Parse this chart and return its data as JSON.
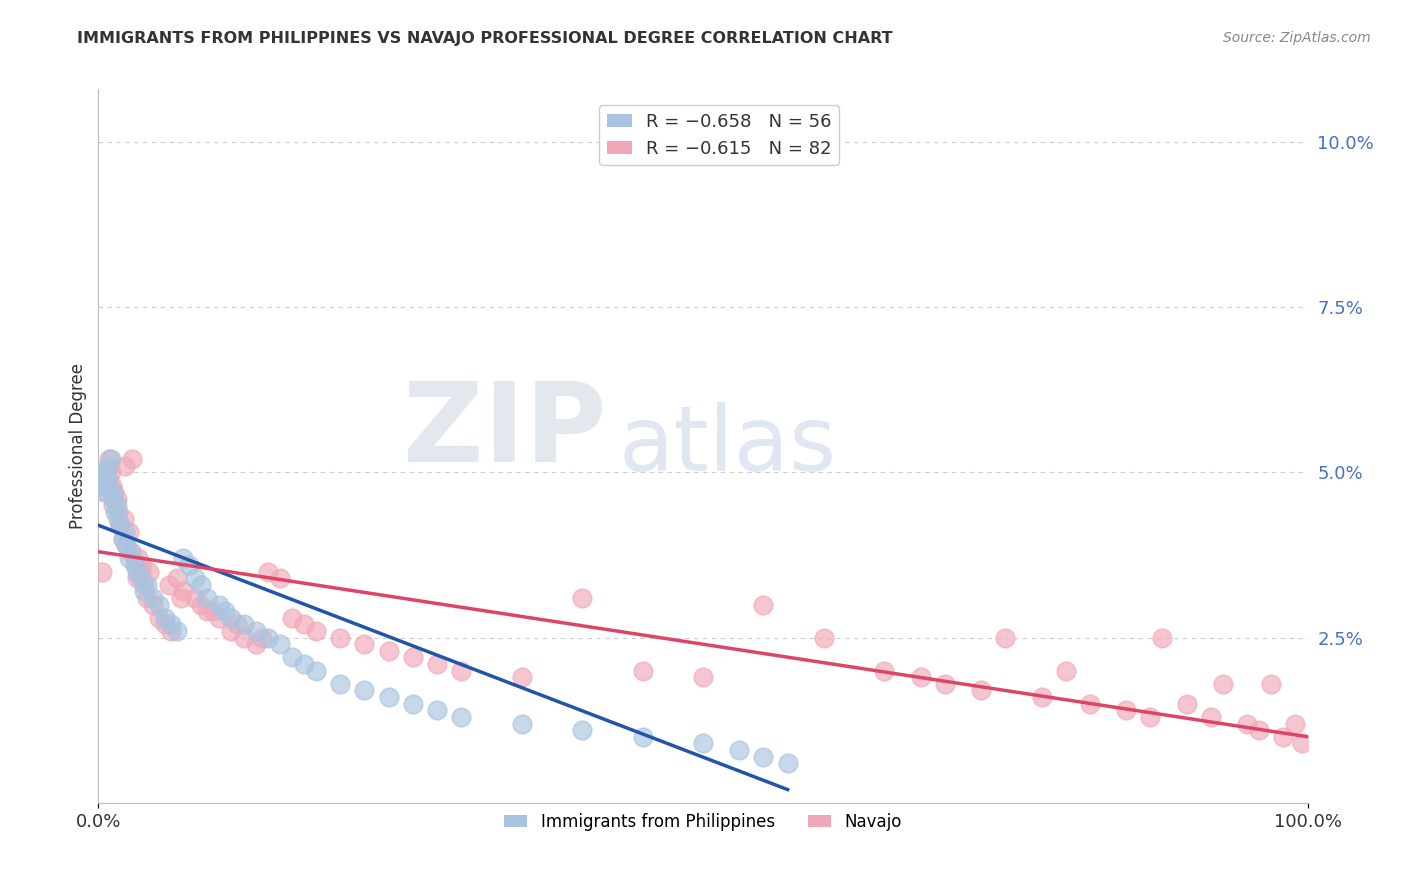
{
  "title": "IMMIGRANTS FROM PHILIPPINES VS NAVAJO PROFESSIONAL DEGREE CORRELATION CHART",
  "source": "Source: ZipAtlas.com",
  "ylabel": "Professional Degree",
  "watermark_zip": "ZIP",
  "watermark_atlas": "atlas",
  "legend": {
    "blue_r": "-0.658",
    "blue_n": "56",
    "pink_r": "-0.615",
    "pink_n": "82"
  },
  "blue_color": "#a8c4e0",
  "pink_color": "#f0a8b8",
  "blue_line_color": "#2255aa",
  "pink_line_color": "#dd4466",
  "background_color": "#ffffff",
  "xlim": [
    0,
    100
  ],
  "ylim": [
    0,
    0.108
  ],
  "yticks": [
    0.0,
    0.025,
    0.05,
    0.075,
    0.1
  ],
  "ytick_labels": [
    "",
    "2.5%",
    "5.0%",
    "7.5%",
    "10.0%"
  ],
  "grid_color": "#cccccc",
  "blue_x": [
    0.4,
    0.5,
    0.6,
    0.7,
    0.8,
    0.9,
    1.0,
    1.1,
    1.2,
    1.4,
    1.5,
    1.6,
    1.8,
    2.0,
    2.2,
    2.3,
    2.5,
    2.7,
    3.0,
    3.2,
    3.5,
    3.8,
    4.0,
    4.5,
    5.0,
    5.5,
    6.0,
    6.5,
    7.0,
    7.5,
    8.0,
    8.5,
    9.0,
    10.0,
    10.5,
    11.0,
    12.0,
    13.0,
    14.0,
    15.0,
    16.0,
    17.0,
    18.0,
    20.0,
    22.0,
    24.0,
    26.0,
    28.0,
    30.0,
    35.0,
    40.0,
    45.0,
    50.0,
    53.0,
    55.0,
    57.0
  ],
  "blue_y": [
    0.05,
    0.048,
    0.047,
    0.049,
    0.051,
    0.048,
    0.052,
    0.047,
    0.046,
    0.044,
    0.045,
    0.043,
    0.042,
    0.04,
    0.041,
    0.039,
    0.037,
    0.038,
    0.036,
    0.035,
    0.034,
    0.032,
    0.033,
    0.031,
    0.03,
    0.028,
    0.027,
    0.026,
    0.037,
    0.036,
    0.034,
    0.033,
    0.031,
    0.03,
    0.029,
    0.028,
    0.027,
    0.026,
    0.025,
    0.024,
    0.022,
    0.021,
    0.02,
    0.018,
    0.017,
    0.016,
    0.015,
    0.014,
    0.013,
    0.012,
    0.011,
    0.01,
    0.009,
    0.008,
    0.007,
    0.006
  ],
  "pink_x": [
    0.3,
    0.5,
    0.6,
    0.8,
    0.9,
    1.0,
    1.1,
    1.2,
    1.3,
    1.5,
    1.6,
    1.8,
    2.0,
    2.1,
    2.3,
    2.5,
    2.7,
    3.0,
    3.2,
    3.5,
    3.8,
    4.0,
    4.5,
    5.0,
    5.5,
    6.0,
    6.5,
    7.0,
    8.0,
    9.0,
    10.0,
    11.0,
    12.0,
    13.0,
    14.0,
    15.0,
    16.0,
    17.0,
    18.0,
    20.0,
    22.0,
    24.0,
    26.0,
    28.0,
    30.0,
    35.0,
    40.0,
    45.0,
    50.0,
    55.0,
    60.0,
    65.0,
    68.0,
    70.0,
    73.0,
    75.0,
    78.0,
    80.0,
    82.0,
    85.0,
    87.0,
    88.0,
    90.0,
    92.0,
    93.0,
    95.0,
    96.0,
    97.0,
    98.0,
    99.0,
    99.5,
    2.2,
    2.8,
    3.3,
    3.6,
    4.2,
    5.8,
    6.8,
    8.5,
    9.5,
    11.5,
    13.5
  ],
  "pink_y": [
    0.035,
    0.047,
    0.05,
    0.049,
    0.052,
    0.05,
    0.048,
    0.045,
    0.047,
    0.046,
    0.044,
    0.042,
    0.04,
    0.043,
    0.039,
    0.041,
    0.038,
    0.036,
    0.034,
    0.035,
    0.033,
    0.031,
    0.03,
    0.028,
    0.027,
    0.026,
    0.034,
    0.032,
    0.031,
    0.029,
    0.028,
    0.026,
    0.025,
    0.024,
    0.035,
    0.034,
    0.028,
    0.027,
    0.026,
    0.025,
    0.024,
    0.023,
    0.022,
    0.021,
    0.02,
    0.019,
    0.031,
    0.02,
    0.019,
    0.03,
    0.025,
    0.02,
    0.019,
    0.018,
    0.017,
    0.025,
    0.016,
    0.02,
    0.015,
    0.014,
    0.013,
    0.025,
    0.015,
    0.013,
    0.018,
    0.012,
    0.011,
    0.018,
    0.01,
    0.012,
    0.009,
    0.051,
    0.052,
    0.037,
    0.036,
    0.035,
    0.033,
    0.031,
    0.03,
    0.029,
    0.027,
    0.025
  ],
  "blue_line_x": [
    0,
    57
  ],
  "blue_line_y": [
    0.042,
    0.002
  ],
  "pink_line_x": [
    0,
    100
  ],
  "pink_line_y": [
    0.038,
    0.01
  ]
}
